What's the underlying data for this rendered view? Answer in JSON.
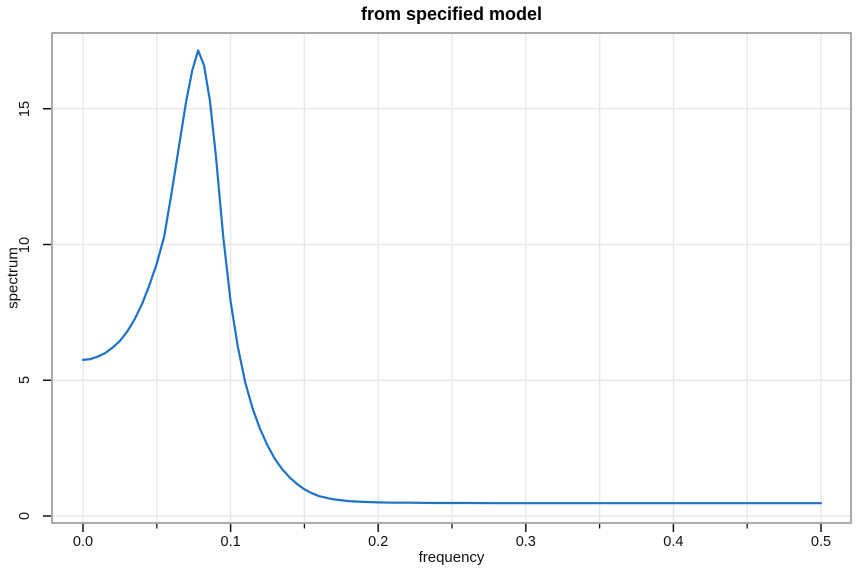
{
  "chart_data": {
    "type": "line",
    "title": "from specified model",
    "xlabel": "frequency",
    "ylabel": "spectrum",
    "xlim": [
      0,
      0.5
    ],
    "ylim": [
      0,
      18
    ],
    "grid": true,
    "legend_position": "none",
    "x_ticks_major": [
      0.0,
      0.1,
      0.2,
      0.3,
      0.4,
      0.5
    ],
    "x_tick_labels": [
      "0.0",
      "0.1",
      "0.2",
      "0.3",
      "0.4",
      "0.5"
    ],
    "x_ticks_minor": [
      0.05,
      0.15,
      0.25,
      0.35,
      0.45
    ],
    "y_ticks_major": [
      0,
      5,
      10,
      15
    ],
    "y_tick_labels": [
      "0",
      "5",
      "10",
      "15"
    ],
    "grid_x_step": 0.05,
    "grid_y_step": 5,
    "colors": {
      "line": "#1e73c8",
      "grid": "#e8e8e8",
      "frame": "#8f8f8f",
      "tick": "#111111",
      "text": "#111111",
      "background": "#ffffff"
    },
    "series": [
      {
        "name": "spectrum",
        "x": [
          0,
          0.005,
          0.01,
          0.015,
          0.02,
          0.025,
          0.03,
          0.035,
          0.04,
          0.045,
          0.05,
          0.055,
          0.06,
          0.065,
          0.07,
          0.074,
          0.078,
          0.082,
          0.086,
          0.09,
          0.095,
          0.1,
          0.105,
          0.11,
          0.115,
          0.12,
          0.125,
          0.13,
          0.135,
          0.14,
          0.145,
          0.15,
          0.155,
          0.16,
          0.17,
          0.18,
          0.19,
          0.2,
          0.21,
          0.22,
          0.24,
          0.26,
          0.28,
          0.3,
          0.325,
          0.35,
          0.375,
          0.4,
          0.425,
          0.45,
          0.475,
          0.5
        ],
        "y": [
          5.75,
          5.78,
          5.87,
          6.0,
          6.2,
          6.45,
          6.8,
          7.25,
          7.8,
          8.5,
          9.3,
          10.3,
          11.9,
          13.6,
          15.3,
          16.4,
          17.15,
          16.6,
          15.3,
          13.3,
          10.3,
          7.9,
          6.2,
          4.9,
          3.95,
          3.2,
          2.6,
          2.1,
          1.72,
          1.42,
          1.18,
          0.98,
          0.84,
          0.73,
          0.61,
          0.55,
          0.52,
          0.5,
          0.49,
          0.49,
          0.48,
          0.48,
          0.47,
          0.47,
          0.47,
          0.47,
          0.47,
          0.47,
          0.47,
          0.47,
          0.47,
          0.47
        ]
      }
    ],
    "peak": {
      "frequency": 0.078,
      "spectrum": 17.15
    }
  }
}
